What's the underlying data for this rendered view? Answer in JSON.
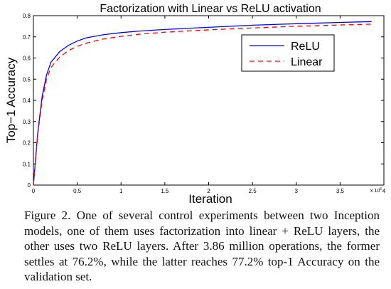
{
  "chart_data": {
    "type": "line",
    "title": "Factorization with Linear vs ReLU activation",
    "xlabel": "Iteration",
    "ylabel": "Top−1 Accuracy",
    "x_multiplier": "x 10",
    "x_multiplier_exp": "6",
    "xlim": [
      0,
      4
    ],
    "ylim": [
      0,
      0.8
    ],
    "x_ticks": [
      "0",
      "0.5",
      "1",
      "1.5",
      "2",
      "2.5",
      "3",
      "3.5",
      "4"
    ],
    "y_ticks": [
      "0",
      "0.1",
      "0.2",
      "0.3",
      "0.4",
      "0.5",
      "0.6",
      "0.7",
      "0.8"
    ],
    "grid": false,
    "legend_position": "top-right",
    "series": [
      {
        "name": "ReLU",
        "color": "#0000ff",
        "dash": "solid",
        "x": [
          0,
          0.05,
          0.1,
          0.15,
          0.2,
          0.3,
          0.4,
          0.5,
          0.6,
          0.8,
          1.0,
          1.2,
          1.5,
          2.0,
          2.5,
          3.0,
          3.5,
          3.86
        ],
        "y": [
          0,
          0.25,
          0.42,
          0.52,
          0.58,
          0.63,
          0.66,
          0.68,
          0.695,
          0.71,
          0.72,
          0.727,
          0.735,
          0.745,
          0.755,
          0.762,
          0.768,
          0.772
        ]
      },
      {
        "name": "Linear",
        "color": "#ff0000",
        "dash": "dashed",
        "x": [
          0,
          0.05,
          0.1,
          0.15,
          0.2,
          0.3,
          0.4,
          0.5,
          0.6,
          0.8,
          1.0,
          1.2,
          1.5,
          2.0,
          2.5,
          3.0,
          3.5,
          3.86
        ],
        "y": [
          0,
          0.24,
          0.4,
          0.5,
          0.555,
          0.605,
          0.635,
          0.655,
          0.67,
          0.69,
          0.702,
          0.712,
          0.722,
          0.733,
          0.742,
          0.75,
          0.756,
          0.76
        ]
      }
    ]
  },
  "caption": "Figure 2. One of several control experiments between two Inception models, one of them uses factorization into linear + ReLU layers, the other uses two ReLU layers. After 3.86 million operations, the former settles at 76.2%, while the latter reaches 77.2% top-1 Accuracy on the validation set."
}
